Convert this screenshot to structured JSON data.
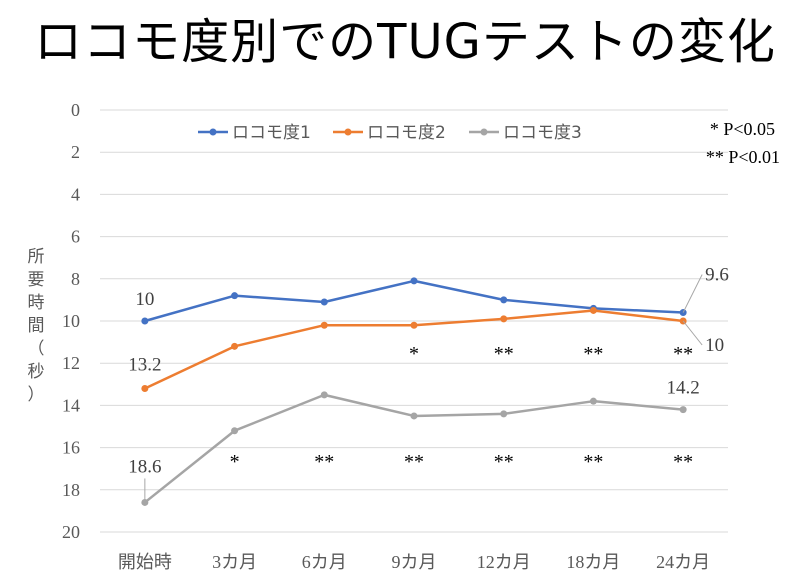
{
  "slide": {
    "title": "ロコモ度別でのTUGテストの変化"
  },
  "chart_data": {
    "type": "line",
    "ylabel": "所要時間（秒）",
    "ylim": [
      0,
      20
    ],
    "y_reversed": true,
    "yticks": [
      0,
      2,
      4,
      6,
      8,
      10,
      12,
      14,
      16,
      18,
      20
    ],
    "categories": [
      "開始時",
      "3カ月",
      "6カ月",
      "9カ月",
      "12カ月",
      "18カ月",
      "24カ月"
    ],
    "series": [
      {
        "name": "ロコモ度1",
        "color": "#4472c4",
        "values": [
          10,
          8.8,
          9.1,
          8.1,
          9.0,
          9.4,
          9.6
        ]
      },
      {
        "name": "ロコモ度2",
        "color": "#ed7d31",
        "values": [
          13.2,
          11.2,
          10.2,
          10.2,
          9.9,
          9.5,
          10
        ]
      },
      {
        "name": "ロコモ度3",
        "color": "#a5a5a5",
        "values": [
          18.6,
          15.2,
          13.5,
          14.5,
          14.4,
          13.8,
          14.2
        ]
      }
    ],
    "data_labels": [
      {
        "series": 0,
        "index": 0,
        "text": "10"
      },
      {
        "series": 0,
        "index": 6,
        "text": "9.6"
      },
      {
        "series": 1,
        "index": 0,
        "text": "13.2"
      },
      {
        "series": 1,
        "index": 6,
        "text": "10"
      },
      {
        "series": 2,
        "index": 0,
        "text": "18.6"
      },
      {
        "series": 2,
        "index": 6,
        "text": "14.2"
      }
    ],
    "significance_series2": [
      "",
      "",
      "",
      "*",
      "**",
      "**",
      "**"
    ],
    "significance_series3": [
      "",
      "*",
      "**",
      "**",
      "**",
      "**",
      "**"
    ],
    "notes": [
      "* P<0.05",
      "** P<0.01"
    ],
    "legend_position": "top",
    "grid": true
  }
}
